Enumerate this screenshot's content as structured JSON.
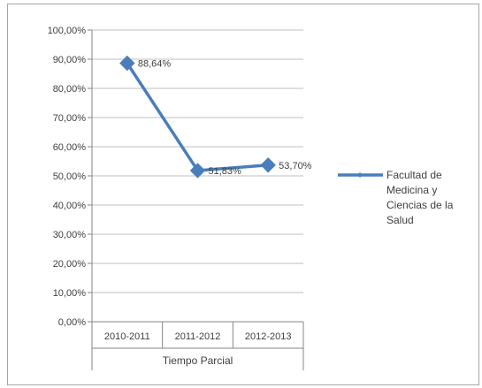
{
  "chart_data": {
    "type": "line",
    "categories": [
      "2010-2011",
      "2011-2012",
      "2012-2013"
    ],
    "series": [
      {
        "name": "Facultad de Medicina y Ciencias de la Salud",
        "values": [
          88.64,
          51.83,
          53.7
        ],
        "labels": [
          "88,64%",
          "51,83%",
          "53,70%"
        ],
        "color": "#4a7ebb"
      }
    ],
    "ylim": [
      0,
      100
    ],
    "yticks": [
      "0,00%",
      "10,00%",
      "20,00%",
      "30,00%",
      "40,00%",
      "50,00%",
      "60,00%",
      "70,00%",
      "80,00%",
      "90,00%",
      "100,00%"
    ],
    "xlabel": "Tiempo Parcial",
    "ylabel": "",
    "title": "",
    "grid": true,
    "legend_position": "right",
    "legend_lines": [
      "Facultad de",
      "Medicina y",
      "Ciencias de la",
      "Salud"
    ]
  }
}
